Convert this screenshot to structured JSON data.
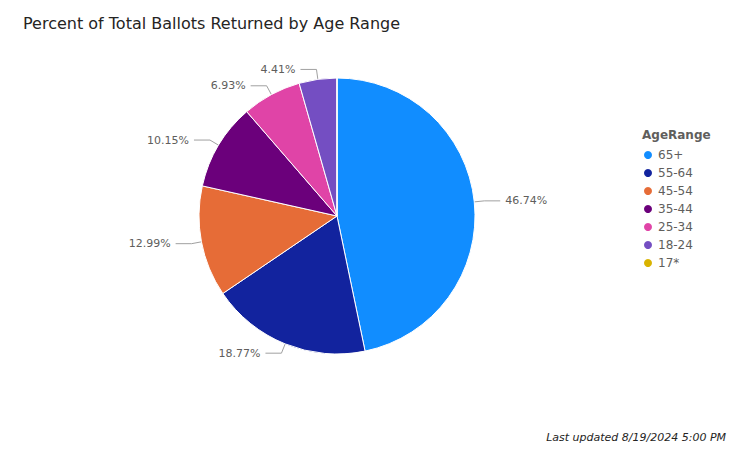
{
  "chart_data": {
    "type": "pie",
    "title": "Percent of Total Ballots Returned by Age Range",
    "legend_title": "AgeRange",
    "annotations": [
      "Last updated 8/19/2024 5:00 PM"
    ],
    "categories": [
      "65+",
      "55-64",
      "45-54",
      "35-44",
      "25-34",
      "18-24",
      "17*"
    ],
    "values": [
      46.74,
      18.77,
      12.99,
      10.15,
      6.93,
      4.41,
      0.01
    ],
    "value_labels": [
      "46.74%",
      "18.77%",
      "12.99%",
      "10.15%",
      "6.93%",
      "4.41%",
      null
    ],
    "colors": [
      "#118DFF",
      "#12239E",
      "#E66C37",
      "#6B007B",
      "#E044A7",
      "#744EC2",
      "#D9B300"
    ],
    "data_labels": true,
    "legend": "right"
  }
}
